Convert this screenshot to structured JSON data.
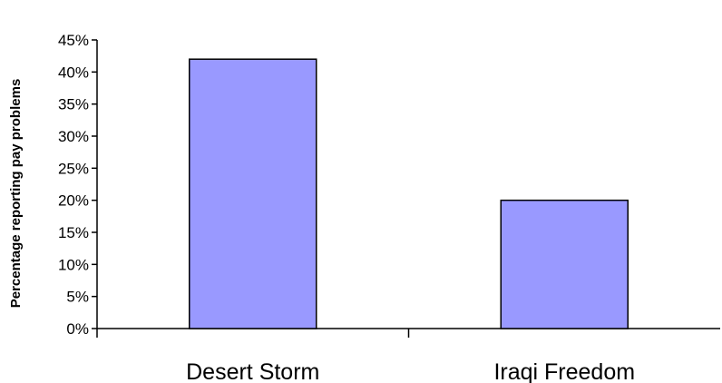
{
  "chart_data": {
    "type": "bar",
    "categories": [
      "Desert Storm",
      "Iraqi Freedom"
    ],
    "values": [
      42,
      20
    ],
    "value_unit": "%",
    "ylabel": "Percentage reporting pay problems",
    "xlabel": "",
    "ylim": [
      0,
      45
    ],
    "yticks": [
      "0%",
      "5%",
      "10%",
      "15%",
      "20%",
      "25%",
      "30%",
      "35%",
      "40%",
      "45%"
    ],
    "grid": false,
    "legend": "none",
    "colors": {
      "bar_fill": "#9999ff",
      "bar_stroke": "#000000",
      "axis": "#000000"
    }
  }
}
